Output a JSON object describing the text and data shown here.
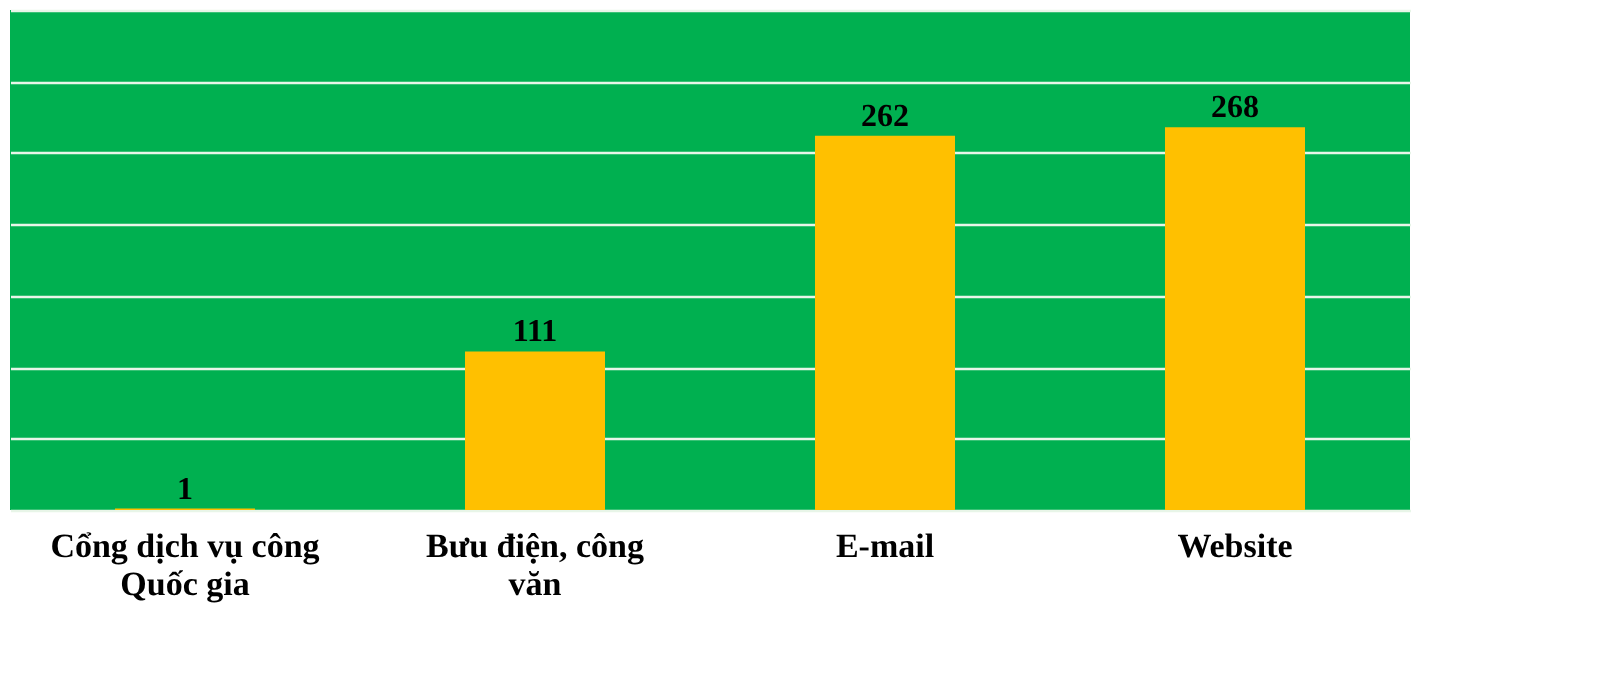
{
  "chart_data": {
    "type": "bar",
    "categories": [
      "Cổng dịch vụ công Quốc gia",
      "Bưu điện, công văn",
      "E-mail",
      "Website"
    ],
    "values": [
      1,
      111,
      262,
      268
    ],
    "color": "#ffc000",
    "ylim": [
      0,
      350
    ],
    "yticks": [
      {
        "value": 0,
        "label": null
      },
      {
        "value": 50,
        "label": null
      },
      {
        "value": 100,
        "label": null
      },
      {
        "value": 150,
        "label": null
      },
      {
        "value": 200,
        "label": null
      },
      {
        "value": 250,
        "label": null
      },
      {
        "value": 300,
        "label": null
      },
      {
        "value": 350,
        "label": null
      }
    ],
    "grid": "y",
    "tick_labels": "x",
    "data_labels": true
  }
}
